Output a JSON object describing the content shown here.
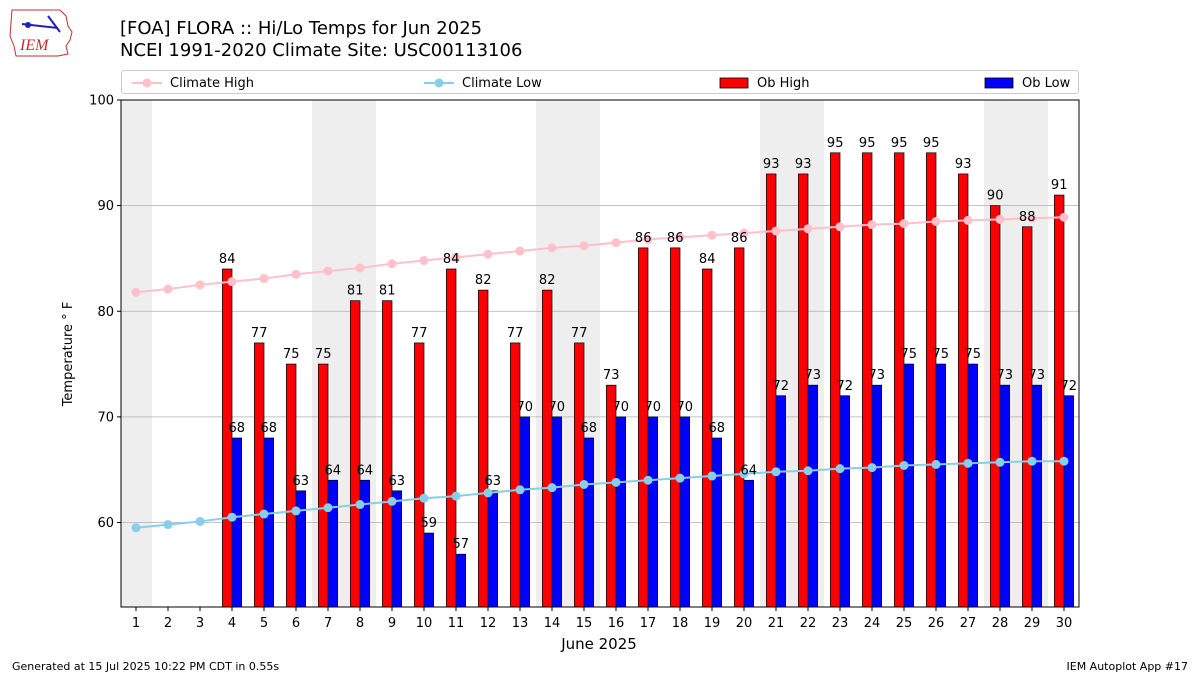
{
  "header": {
    "title_line1": "[FOA] FLORA :: Hi/Lo Temps for Jun 2025",
    "title_line2": "NCEI 1991-2020 Climate Site: USC00113106",
    "logo_text": "IEM"
  },
  "legend": {
    "climate_high": "Climate High",
    "climate_low": "Climate Low",
    "ob_high": "Ob High",
    "ob_low": "Ob Low"
  },
  "footer": {
    "generated": "Generated at 15 Jul 2025 10:22 PM CDT in 0.55s",
    "app": "IEM Autoplot App #17"
  },
  "colors": {
    "climate_high": "#ffc0cb",
    "climate_low": "#87ceeb",
    "ob_high": "#ff0000",
    "ob_low": "#0000ff",
    "weekend_band": "#eeeeee"
  },
  "chart_data": {
    "type": "bar",
    "xlabel": "June 2025",
    "ylabel": "Temperature ° F",
    "ylim": [
      52,
      100
    ],
    "yticks": [
      60,
      70,
      80,
      90,
      100
    ],
    "grid": true,
    "legend_position": "top",
    "categories": [
      1,
      2,
      3,
      4,
      5,
      6,
      7,
      8,
      9,
      10,
      11,
      12,
      13,
      14,
      15,
      16,
      17,
      18,
      19,
      20,
      21,
      22,
      23,
      24,
      25,
      26,
      27,
      28,
      29,
      30
    ],
    "weekend_days": [
      1,
      7,
      8,
      14,
      15,
      21,
      22,
      28,
      29
    ],
    "series": [
      {
        "name": "Ob High",
        "kind": "bar",
        "values": [
          null,
          null,
          null,
          84,
          77,
          75,
          75,
          81,
          81,
          77,
          84,
          82,
          77,
          82,
          77,
          73,
          86,
          86,
          84,
          86,
          93,
          93,
          95,
          95,
          95,
          95,
          93,
          90,
          88,
          91
        ]
      },
      {
        "name": "Ob Low",
        "kind": "bar",
        "values": [
          null,
          null,
          null,
          68,
          68,
          63,
          64,
          64,
          63,
          59,
          57,
          63,
          70,
          70,
          68,
          70,
          70,
          70,
          68,
          64,
          72,
          73,
          72,
          73,
          75,
          75,
          75,
          73,
          73,
          72
        ]
      },
      {
        "name": "Climate High",
        "kind": "line",
        "values": [
          81.8,
          82.1,
          82.5,
          82.8,
          83.1,
          83.5,
          83.8,
          84.1,
          84.5,
          84.8,
          85.1,
          85.4,
          85.7,
          86.0,
          86.2,
          86.5,
          86.8,
          87.0,
          87.2,
          87.4,
          87.6,
          87.8,
          88.0,
          88.2,
          88.3,
          88.5,
          88.6,
          88.7,
          88.8,
          88.9
        ]
      },
      {
        "name": "Climate Low",
        "kind": "line",
        "values": [
          59.5,
          59.8,
          60.1,
          60.5,
          60.8,
          61.1,
          61.4,
          61.7,
          62.0,
          62.3,
          62.5,
          62.8,
          63.1,
          63.3,
          63.6,
          63.8,
          64.0,
          64.2,
          64.4,
          64.6,
          64.8,
          64.9,
          65.1,
          65.2,
          65.4,
          65.5,
          65.6,
          65.7,
          65.8,
          65.8
        ]
      }
    ]
  }
}
